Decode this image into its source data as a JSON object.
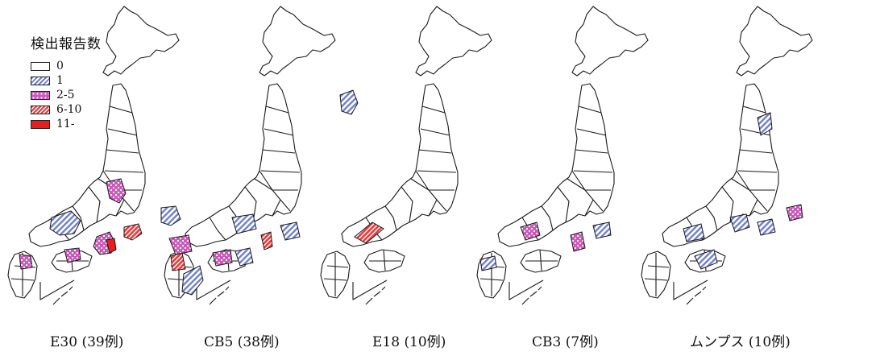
{
  "legend": {
    "title": "検出報告数",
    "items": [
      {
        "label": "0",
        "fill": "#ffffff"
      },
      {
        "label": "1",
        "fill": "#7f8fd0"
      },
      {
        "label": "2-5",
        "fill": "#c85bb8"
      },
      {
        "label": "6-10",
        "fill": "#e85252"
      },
      {
        "label": "11-",
        "fill": "#e81e1e"
      }
    ]
  },
  "maps": [
    {
      "caption": "E30 (39例)"
    },
    {
      "caption": "CB5 (38例)"
    },
    {
      "caption": "E18 (10例)"
    },
    {
      "caption": "CB3 (7例)"
    },
    {
      "caption": "ムンプス (10例)"
    }
  ],
  "colors": {
    "outline": "#1a1a1a",
    "one": "#7f8fd0",
    "two_five": "#c85bb8",
    "six_ten": "#e85252",
    "eleven_plus": "#e81e1e"
  }
}
